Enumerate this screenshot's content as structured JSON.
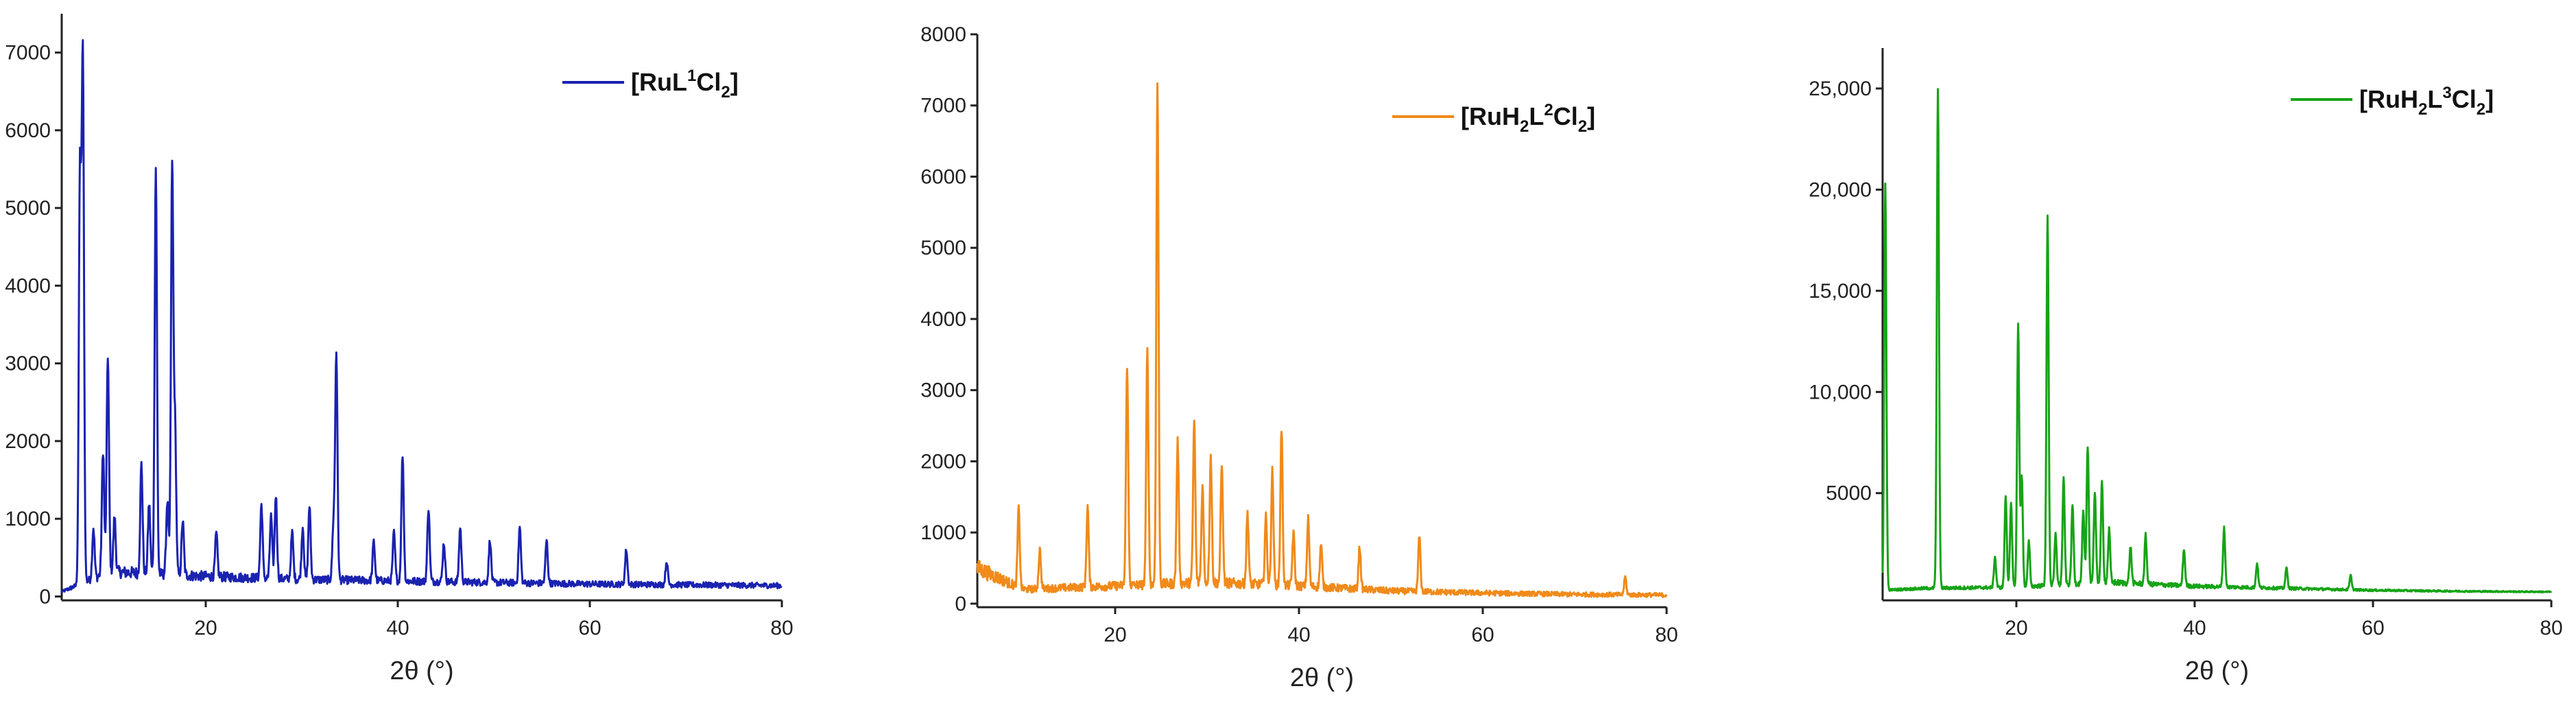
{
  "chart_data": [
    {
      "type": "line",
      "xlabel": "2θ (°)",
      "ylabel": "",
      "xlim": [
        5,
        80
      ],
      "ylim": [
        -50,
        7500
      ],
      "x_ticks": [
        20,
        40,
        60,
        80
      ],
      "y_ticks": [
        0,
        1000,
        2000,
        3000,
        4000,
        5000,
        6000,
        7000
      ],
      "y_tick_labels": [
        "0",
        "1000",
        "2000",
        "3000",
        "4000",
        "5000",
        "6000",
        "7000"
      ],
      "legend": {
        "prefix": "[RuL",
        "sup": "1",
        "mid": "Cl",
        "sub": "2",
        "suffix": "]",
        "position": "top-right"
      },
      "color": "#1a22b0",
      "baseline": {
        "x": [
          5,
          10,
          20,
          30,
          40,
          50,
          60,
          70,
          80
        ],
        "y": [
          60,
          320,
          260,
          220,
          200,
          180,
          160,
          150,
          140
        ]
      },
      "peaks": [
        [
          6.9,
          5300
        ],
        [
          7.2,
          6750
        ],
        [
          8.3,
          650
        ],
        [
          9.3,
          1600
        ],
        [
          9.8,
          2800
        ],
        [
          10.5,
          700
        ],
        [
          13.3,
          1400
        ],
        [
          14.1,
          900
        ],
        [
          14.8,
          5230
        ],
        [
          16.0,
          950
        ],
        [
          16.5,
          5270
        ],
        [
          16.8,
          1900
        ],
        [
          17.6,
          700
        ],
        [
          21.1,
          550
        ],
        [
          25.8,
          950
        ],
        [
          26.8,
          800
        ],
        [
          27.3,
          1080
        ],
        [
          29.0,
          600
        ],
        [
          30.1,
          680
        ],
        [
          30.8,
          950
        ],
        [
          33.3,
          700
        ],
        [
          33.6,
          2920
        ],
        [
          37.5,
          500
        ],
        [
          39.6,
          620
        ],
        [
          40.5,
          1630
        ],
        [
          43.2,
          950
        ],
        [
          44.8,
          500
        ],
        [
          46.5,
          700
        ],
        [
          49.6,
          550
        ],
        [
          52.7,
          720
        ],
        [
          55.5,
          550
        ],
        [
          63.8,
          450
        ],
        [
          68.0,
          300
        ]
      ]
    },
    {
      "type": "line",
      "xlabel": "2θ (°)",
      "ylabel": "",
      "xlim": [
        5,
        80
      ],
      "ylim": [
        -50,
        8000
      ],
      "x_ticks": [
        20,
        40,
        60,
        80
      ],
      "y_ticks": [
        0,
        1000,
        2000,
        3000,
        4000,
        5000,
        6000,
        7000,
        8000
      ],
      "y_tick_labels": [
        "0",
        "1000",
        "2000",
        "3000",
        "4000",
        "5000",
        "6000",
        "7000",
        "8000"
      ],
      "legend": {
        "prefix": "[RuH",
        "sub1": "2",
        "mid1": "L",
        "sup": "2",
        "mid": "Cl",
        "sub": "2",
        "suffix": "]",
        "position": "top-right"
      },
      "color": "#f08a1a",
      "baseline": {
        "x": [
          5,
          10,
          20,
          30,
          40,
          50,
          60,
          70,
          80
        ],
        "y": [
          500,
          200,
          250,
          300,
          250,
          180,
          150,
          130,
          120
        ]
      },
      "peaks": [
        [
          9.5,
          1100
        ],
        [
          11.8,
          550
        ],
        [
          17.0,
          1130
        ],
        [
          21.3,
          3100
        ],
        [
          23.5,
          3280
        ],
        [
          24.6,
          7050
        ],
        [
          26.8,
          2000
        ],
        [
          28.6,
          2280
        ],
        [
          29.5,
          1350
        ],
        [
          30.4,
          1780
        ],
        [
          31.6,
          1660
        ],
        [
          34.4,
          1000
        ],
        [
          36.4,
          950
        ],
        [
          37.1,
          1600
        ],
        [
          38.1,
          2200
        ],
        [
          39.4,
          750
        ],
        [
          41.0,
          950
        ],
        [
          42.4,
          600
        ],
        [
          46.6,
          600
        ],
        [
          53.1,
          780
        ],
        [
          75.5,
          250
        ]
      ]
    },
    {
      "type": "line",
      "xlabel": "2θ (°)",
      "ylabel": "",
      "xlim": [
        5,
        80
      ],
      "ylim": [
        -300,
        27000
      ],
      "x_ticks": [
        20,
        40,
        60,
        80
      ],
      "y_ticks": [
        5000,
        10000,
        15000,
        20000,
        25000
      ],
      "y_tick_labels": [
        "5000",
        "10,000",
        "15,000",
        "20,000",
        "25,000"
      ],
      "legend": {
        "prefix": "[RuH",
        "sub1": "2",
        "mid1": "L",
        "sup": "3",
        "mid": "Cl",
        "sub": "2",
        "suffix": "]",
        "position": "top-right"
      },
      "color": "#17a317",
      "baseline": {
        "x": [
          5,
          10,
          20,
          30,
          40,
          50,
          60,
          70,
          80
        ],
        "y": [
          200,
          300,
          350,
          600,
          400,
          300,
          200,
          150,
          120
        ]
      },
      "peaks": [
        [
          5.3,
          20100
        ],
        [
          11.2,
          24700
        ],
        [
          17.6,
          1500
        ],
        [
          18.8,
          4500
        ],
        [
          19.4,
          4100
        ],
        [
          20.2,
          13000
        ],
        [
          20.6,
          5500
        ],
        [
          21.4,
          2200
        ],
        [
          23.5,
          18200
        ],
        [
          24.4,
          2500
        ],
        [
          25.3,
          5200
        ],
        [
          26.3,
          3900
        ],
        [
          27.5,
          3500
        ],
        [
          28.0,
          6800
        ],
        [
          28.8,
          4500
        ],
        [
          29.6,
          4900
        ],
        [
          30.4,
          2600
        ],
        [
          32.8,
          1800
        ],
        [
          34.5,
          2400
        ],
        [
          38.8,
          1800
        ],
        [
          43.3,
          2900
        ],
        [
          47.0,
          1200
        ],
        [
          50.3,
          1000
        ],
        [
          57.5,
          700
        ]
      ]
    }
  ]
}
